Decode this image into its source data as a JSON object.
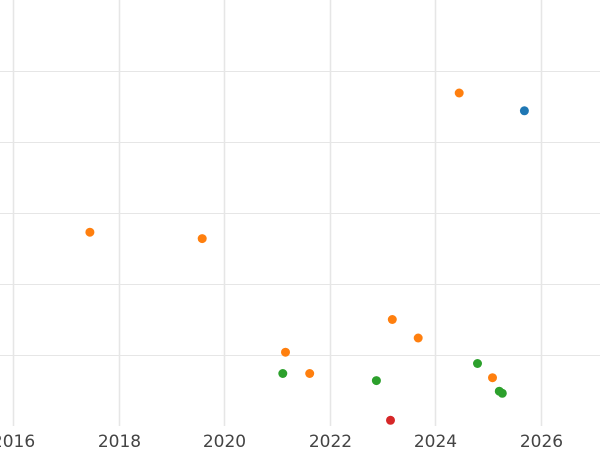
{
  "chart_data": {
    "type": "scatter",
    "title": "",
    "xlabel": "",
    "ylabel": "",
    "x_scale": "time",
    "xlim": [
      "2015-10-01",
      "2027-02-15"
    ],
    "ylim": [
      0,
      6
    ],
    "x_ticks": [
      "2016",
      "2018",
      "2020",
      "2022",
      "2024",
      "2026"
    ],
    "y_ticks": [
      1,
      2,
      3,
      4,
      5
    ],
    "y_tick_labels_visible": false,
    "grid": true,
    "legend": "none",
    "series": [
      {
        "color": "#ff7f0e",
        "points": [
          {
            "x": "2017-06-15",
            "y": 2.73
          },
          {
            "x": "2019-08-01",
            "y": 2.64
          },
          {
            "x": "2021-03-01",
            "y": 1.04
          },
          {
            "x": "2021-08-15",
            "y": 0.74
          },
          {
            "x": "2023-03-10",
            "y": 1.5
          },
          {
            "x": "2023-09-05",
            "y": 1.24
          },
          {
            "x": "2024-06-15",
            "y": 4.69
          },
          {
            "x": "2025-02-01",
            "y": 0.68
          }
        ]
      },
      {
        "color": "#1f77b4",
        "points": [
          {
            "x": "2025-09-10",
            "y": 4.44
          }
        ]
      },
      {
        "color": "#2ca02c",
        "points": [
          {
            "x": "2021-02-10",
            "y": 0.74
          },
          {
            "x": "2022-11-20",
            "y": 0.64
          },
          {
            "x": "2024-10-20",
            "y": 0.88
          },
          {
            "x": "2025-03-20",
            "y": 0.49
          },
          {
            "x": "2025-04-10",
            "y": 0.46
          }
        ]
      },
      {
        "color": "#d62728",
        "points": [
          {
            "x": "2023-02-25",
            "y": 0.08
          }
        ]
      }
    ]
  }
}
